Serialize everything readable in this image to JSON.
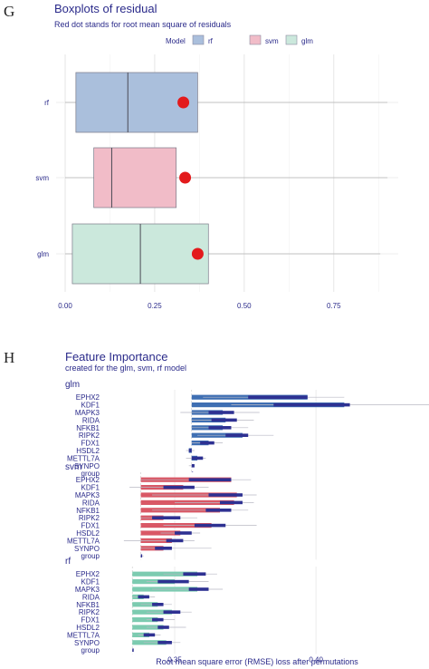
{
  "panel_g": {
    "letter": "G",
    "title": "Boxplots of  residual",
    "subtitle": "Red dot stands for root mean square of residuals",
    "legend": {
      "title": "Model",
      "items": [
        "rf",
        "svm",
        "glm"
      ]
    }
  },
  "panel_h": {
    "letter": "H",
    "title": "Feature Importance",
    "subtitle": "created for the glm, svm, rf model",
    "xlabel": "Root mean square error (RMSE) loss after permutations"
  },
  "colors": {
    "rf": "#aabfdc",
    "svm": "#f1bcc8",
    "glm": "#cbe8dc",
    "rmse_dot": "#e31a1c",
    "glm_bar": "#3f6fb3",
    "svm_bar": "#d95866",
    "rf_bar": "#7ccbb0",
    "boxplot_navy": "#2e3192",
    "text": "#2a2a8a"
  },
  "chart_data": [
    {
      "type": "boxplot",
      "title": "Boxplots of  residual",
      "subtitle": "Red dot stands for root mean square of residuals",
      "orientation": "horizontal",
      "xlim": [
        0,
        0.93
      ],
      "xticks": [
        "0.00",
        "0.25",
        "0.50",
        "0.75"
      ],
      "xtick_values": [
        0,
        0.25,
        0.5,
        0.75
      ],
      "legend_position": "top",
      "series": [
        {
          "name": "rf",
          "whisker_low": 0.0,
          "q1": 0.03,
          "median": 0.175,
          "q3": 0.37,
          "whisker_high": 0.9,
          "rmse": 0.33
        },
        {
          "name": "svm",
          "whisker_low": 0.0,
          "q1": 0.08,
          "median": 0.13,
          "q3": 0.31,
          "whisker_high": 0.9,
          "rmse": 0.335
        },
        {
          "name": "glm",
          "whisker_low": 0.0,
          "q1": 0.02,
          "median": 0.21,
          "q3": 0.4,
          "whisker_high": 0.88,
          "rmse": 0.37
        }
      ]
    },
    {
      "type": "bar",
      "title": "Feature Importance",
      "subtitle": "created for the glm, svm, rf model",
      "xlabel": "Root mean square error (RMSE) loss after permutations",
      "xlim": [
        0.325,
        0.44
      ],
      "xticks": [
        "0.35",
        "0.40"
      ],
      "xtick_values": [
        0.35,
        0.4
      ],
      "facets": [
        {
          "name": "glm",
          "baseline": 0.356,
          "features": [
            {
              "label": "EPHX2",
              "value": 0.397,
              "box": [
                0.376,
                0.397
              ],
              "whisker": [
                0.36,
                0.41
              ]
            },
            {
              "label": "KDF1",
              "value": 0.41,
              "box": [
                0.385,
                0.412
              ],
              "whisker": [
                0.37,
                0.44
              ]
            },
            {
              "label": "MAPK3",
              "value": 0.367,
              "box": [
                0.362,
                0.371
              ],
              "whisker": [
                0.352,
                0.38
              ]
            },
            {
              "label": "RIDA",
              "value": 0.368,
              "box": [
                0.363,
                0.372
              ],
              "whisker": [
                0.356,
                0.378
              ]
            },
            {
              "label": "NFKB1",
              "value": 0.367,
              "box": [
                0.362,
                0.37
              ],
              "whisker": [
                0.356,
                0.376
              ]
            },
            {
              "label": "RIPK2",
              "value": 0.374,
              "box": [
                0.368,
                0.376
              ],
              "whisker": [
                0.358,
                0.385
              ]
            },
            {
              "label": "FDX1",
              "value": 0.362,
              "box": [
                0.359,
                0.364
              ],
              "whisker": [
                0.356,
                0.367
              ]
            },
            {
              "label": "HSDL2",
              "value": 0.355,
              "box": [
                0.355,
                0.356
              ],
              "whisker": [
                0.354,
                0.357
              ]
            },
            {
              "label": "METTL7A",
              "value": 0.358,
              "box": [
                0.356,
                0.36
              ],
              "whisker": [
                0.354,
                0.361
              ]
            },
            {
              "label": "SYNPO",
              "value": 0.356,
              "box": [
                0.356,
                0.357
              ],
              "whisker": [
                0.355,
                0.357
              ]
            },
            {
              "label": "group",
              "value": 0.356,
              "box": [
                0.356,
                0.356
              ],
              "whisker": [
                0.356,
                0.357
              ]
            }
          ]
        },
        {
          "name": "svm",
          "baseline": 0.338,
          "features": [
            {
              "label": "EPHX2",
              "value": 0.37,
              "box": [
                0.355,
                0.37
              ],
              "whisker": [
                0.338,
                0.377
              ]
            },
            {
              "label": "KDF1",
              "value": 0.353,
              "box": [
                0.346,
                0.357
              ],
              "whisker": [
                0.334,
                0.362
              ]
            },
            {
              "label": "MAPK3",
              "value": 0.372,
              "box": [
                0.362,
                0.374
              ],
              "whisker": [
                0.342,
                0.379
              ]
            },
            {
              "label": "RIDA",
              "value": 0.371,
              "box": [
                0.366,
                0.374
              ],
              "whisker": [
                0.35,
                0.378
              ]
            },
            {
              "label": "NFKB1",
              "value": 0.366,
              "box": [
                0.361,
                0.37
              ],
              "whisker": [
                0.342,
                0.376
              ]
            },
            {
              "label": "RIPK2",
              "value": 0.346,
              "box": [
                0.342,
                0.352
              ],
              "whisker": [
                0.338,
                0.358
              ]
            },
            {
              "label": "FDX1",
              "value": 0.363,
              "box": [
                0.357,
                0.368
              ],
              "whisker": [
                0.346,
                0.379
              ]
            },
            {
              "label": "HSDL2",
              "value": 0.352,
              "box": [
                0.35,
                0.356
              ],
              "whisker": [
                0.345,
                0.359
              ]
            },
            {
              "label": "METTL7A",
              "value": 0.349,
              "box": [
                0.347,
                0.353
              ],
              "whisker": [
                0.332,
                0.357
              ]
            },
            {
              "label": "SYNPO",
              "value": 0.346,
              "box": [
                0.343,
                0.349
              ],
              "whisker": [
                0.338,
                0.363
              ]
            },
            {
              "label": "group",
              "value": 0.338,
              "box": [
                0.338,
                0.338
              ],
              "whisker": [
                0.338,
                0.339
              ]
            }
          ]
        },
        {
          "name": "rf",
          "baseline": 0.335,
          "features": [
            {
              "label": "EPHX2",
              "value": 0.358,
              "box": [
                0.353,
                0.361
              ],
              "whisker": [
                0.346,
                0.365
              ]
            },
            {
              "label": "KDF1",
              "value": 0.35,
              "box": [
                0.344,
                0.355
              ],
              "whisker": [
                0.34,
                0.362
              ]
            },
            {
              "label": "MAPK3",
              "value": 0.358,
              "box": [
                0.355,
                0.362
              ],
              "whisker": [
                0.342,
                0.367
              ]
            },
            {
              "label": "RIDA",
              "value": 0.339,
              "box": [
                0.337,
                0.341
              ],
              "whisker": [
                0.335,
                0.343
              ]
            },
            {
              "label": "NFKB1",
              "value": 0.344,
              "box": [
                0.342,
                0.346
              ],
              "whisker": [
                0.338,
                0.349
              ]
            },
            {
              "label": "RIPK2",
              "value": 0.349,
              "box": [
                0.346,
                0.352
              ],
              "whisker": [
                0.34,
                0.356
              ]
            },
            {
              "label": "FDX1",
              "value": 0.344,
              "box": [
                0.342,
                0.346
              ],
              "whisker": [
                0.34,
                0.35
              ]
            },
            {
              "label": "HSDL2",
              "value": 0.346,
              "box": [
                0.344,
                0.348
              ],
              "whisker": [
                0.34,
                0.354
              ]
            },
            {
              "label": "METTL7A",
              "value": 0.341,
              "box": [
                0.339,
                0.343
              ],
              "whisker": [
                0.337,
                0.345
              ]
            },
            {
              "label": "SYNPO",
              "value": 0.347,
              "box": [
                0.344,
                0.349
              ],
              "whisker": [
                0.339,
                0.352
              ]
            },
            {
              "label": "group",
              "value": 0.335,
              "box": [
                0.335,
                0.335
              ],
              "whisker": [
                0.335,
                0.335
              ]
            }
          ]
        }
      ]
    }
  ]
}
